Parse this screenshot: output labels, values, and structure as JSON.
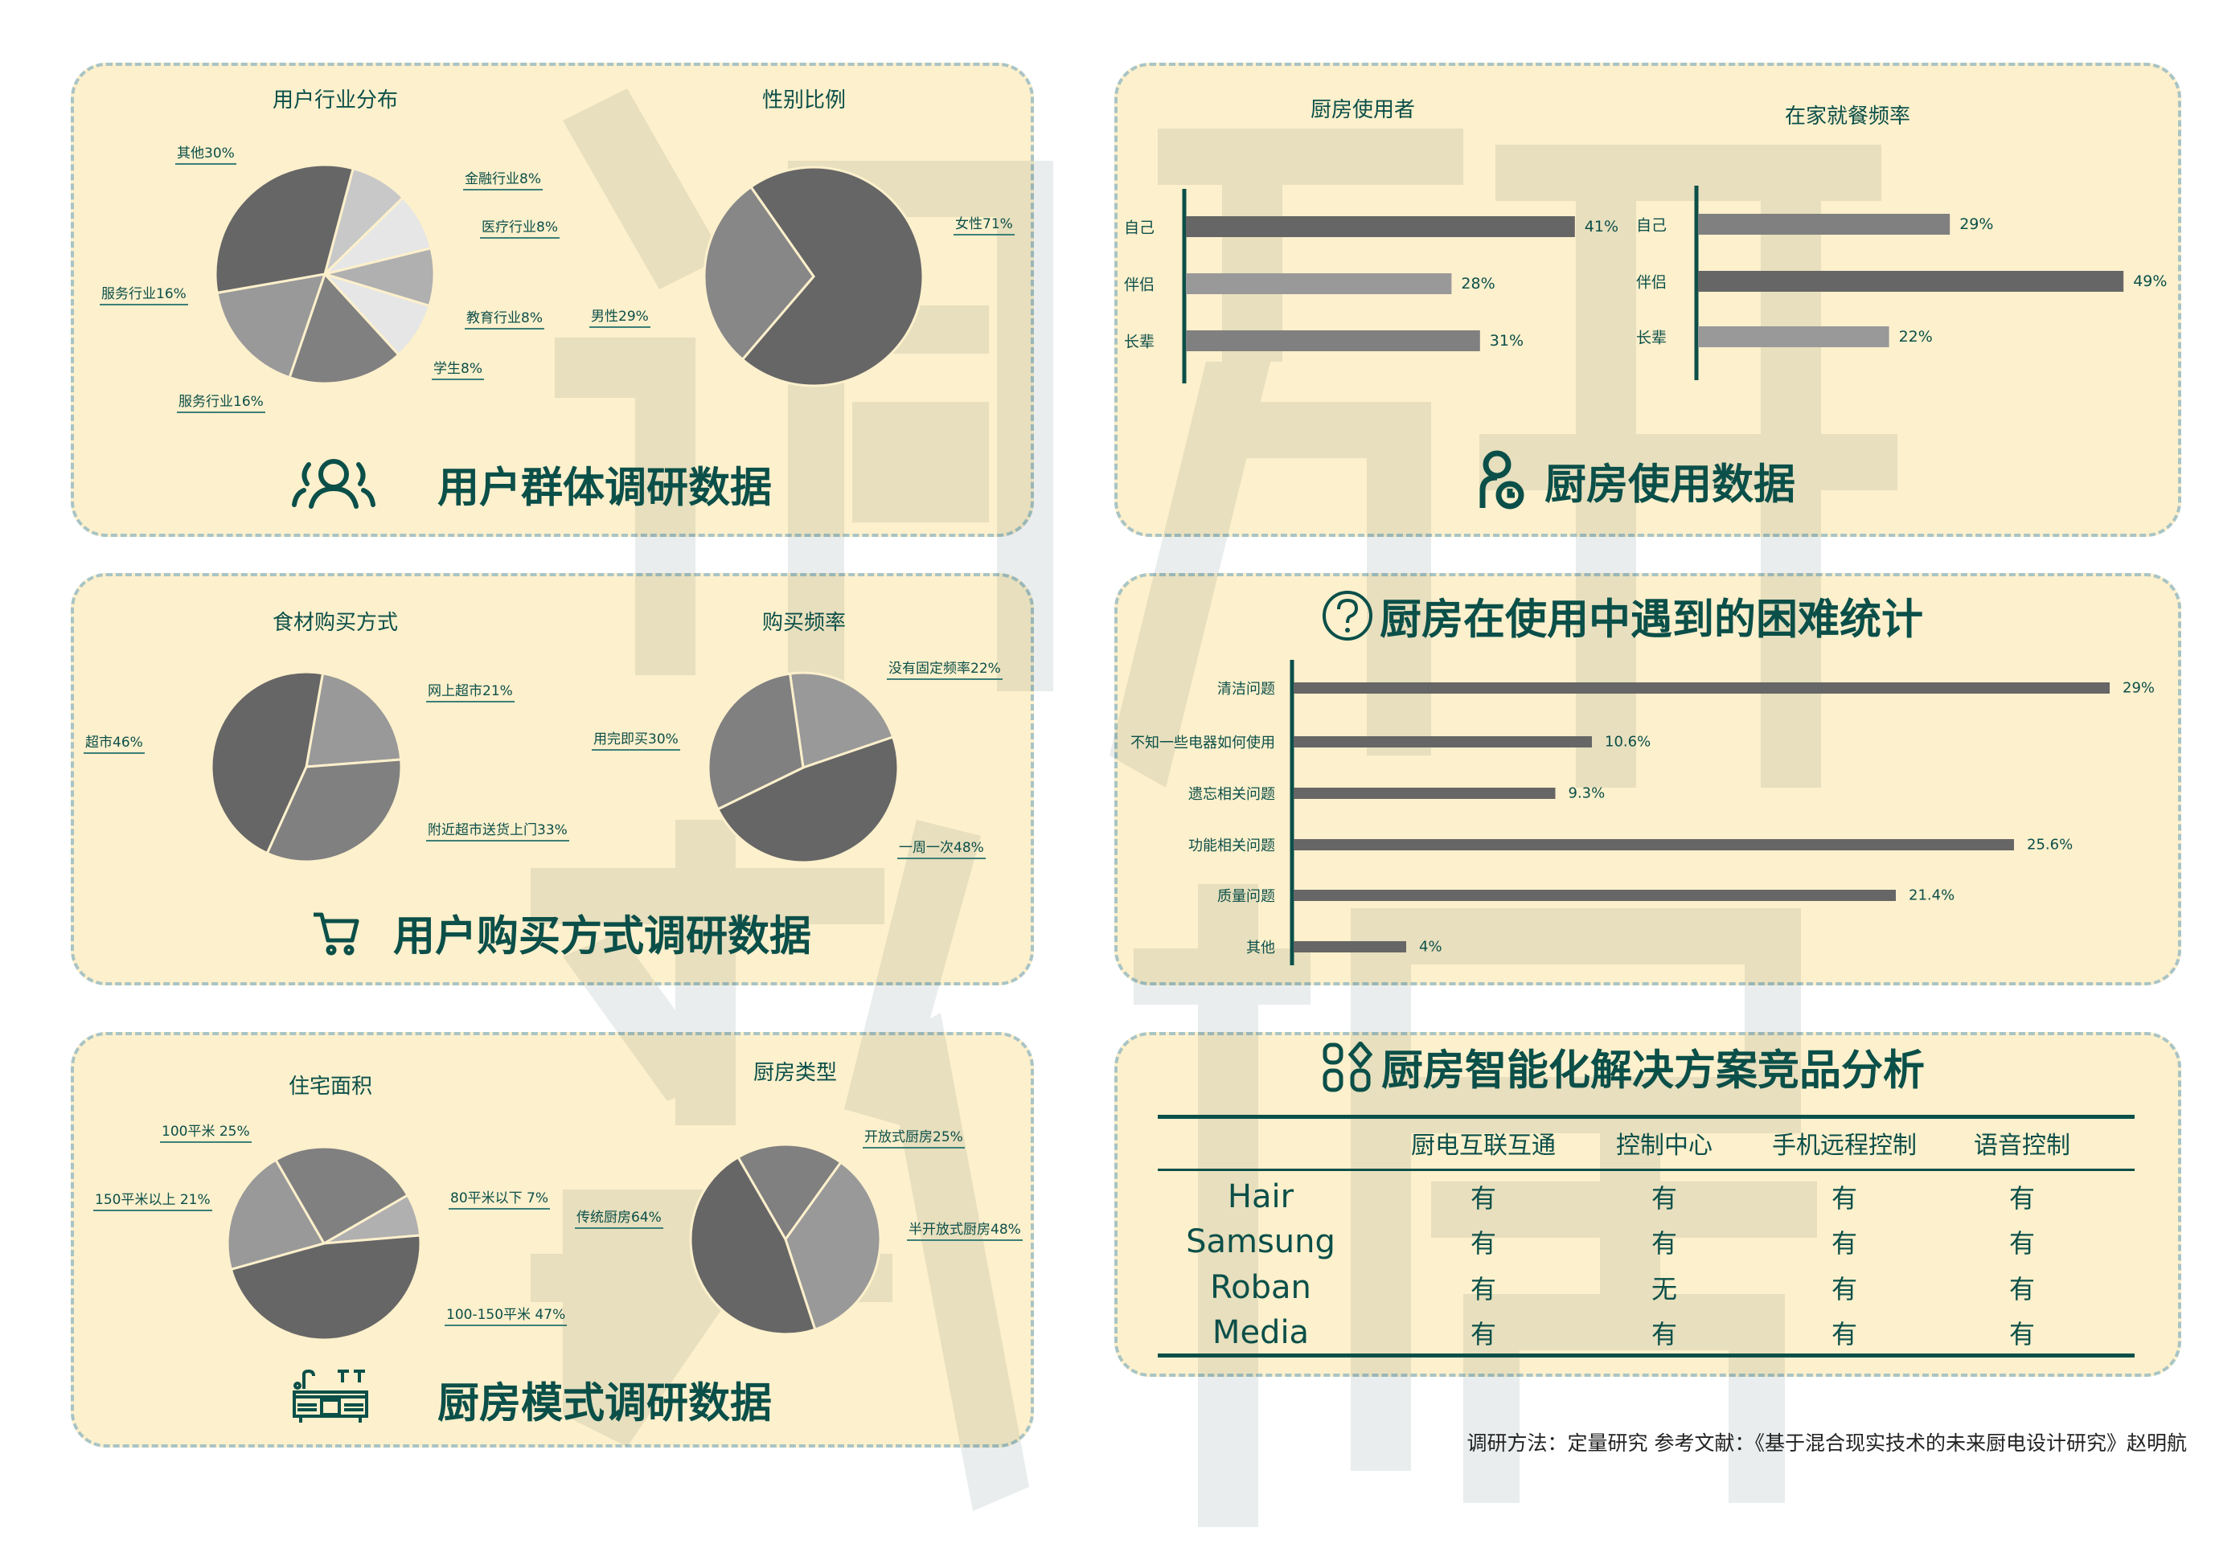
{
  "watermark": [
    "调",
    "研",
    "数",
    "据"
  ],
  "colors": {
    "accent": "#0b4f49",
    "panel": "#fdf0cc",
    "border": "#a9c4c4"
  },
  "user_group": {
    "section_title": "用户群体调研数据",
    "icon": "users-icon",
    "chart_data": [
      {
        "type": "pie",
        "title": "用户行业分布",
        "slices": [
          {
            "label": "金融行业8%",
            "value": 8,
            "color": "#c8c8c8"
          },
          {
            "label": "医疗行业8%",
            "value": 8,
            "color": "#e6e6e6"
          },
          {
            "label": "教育行业8%",
            "value": 8,
            "color": "#b0b0b0"
          },
          {
            "label": "学生8%",
            "value": 8,
            "color": "#e6e6e6"
          },
          {
            "label": "服务行业16%",
            "value": 16,
            "color": "#808080"
          },
          {
            "label": "服务行业16%",
            "value": 16,
            "color": "#999999"
          },
          {
            "label": "其他30%",
            "value": 30,
            "color": "#666666"
          }
        ]
      },
      {
        "type": "pie",
        "title": "性别比例",
        "slices": [
          {
            "label": "女性71%",
            "value": 71,
            "color": "#666666"
          },
          {
            "label": "男性29%",
            "value": 29,
            "color": "#878787"
          }
        ]
      }
    ]
  },
  "kitchen_usage": {
    "section_title": "厨房使用数据",
    "icon": "user-clock-icon",
    "chart_data": [
      {
        "type": "bar",
        "title": "厨房使用者",
        "categories": [
          "自己",
          "伴侣",
          "长辈"
        ],
        "values": [
          41,
          28,
          31
        ],
        "labels": [
          "41%",
          "28%",
          "31%"
        ],
        "colors": [
          "#666666",
          "#999999",
          "#808080"
        ]
      },
      {
        "type": "bar",
        "title": "在家就餐频率",
        "categories": [
          "自己",
          "伴侣",
          "长辈"
        ],
        "values": [
          29,
          49,
          22
        ],
        "labels": [
          "29%",
          "49%",
          "22%"
        ],
        "colors": [
          "#808080",
          "#666666",
          "#999999"
        ]
      }
    ]
  },
  "purchase": {
    "section_title": "用户购买方式调研数据",
    "icon": "cart-icon",
    "chart_data": [
      {
        "type": "pie",
        "title": "食材购买方式",
        "slices": [
          {
            "label": "网上超市21%",
            "value": 21,
            "color": "#999999"
          },
          {
            "label": "附近超市送货上门33%",
            "value": 33,
            "color": "#808080"
          },
          {
            "label": "超市46%",
            "value": 46,
            "color": "#666666"
          }
        ]
      },
      {
        "type": "pie",
        "title": "购买频率",
        "slices": [
          {
            "label": "没有固定频率22%",
            "value": 22,
            "color": "#999999"
          },
          {
            "label": "一周一次48%",
            "value": 48,
            "color": "#666666"
          },
          {
            "label": "用完即买30%",
            "value": 30,
            "color": "#808080"
          }
        ]
      }
    ]
  },
  "difficulty": {
    "section_title": "厨房在使用中遇到的困难统计",
    "icon": "question-circle-icon",
    "chart_data": {
      "type": "bar",
      "categories": [
        "清洁问题",
        "不知一些电器如何使用",
        "遗忘相关问题",
        "功能相关问题",
        "质量问题",
        "其他"
      ],
      "values": [
        29,
        10.6,
        9.3,
        25.6,
        21.4,
        4
      ],
      "labels": [
        "29%",
        "10.6%",
        "9.3%",
        "25.6%",
        "21.4%",
        "4%"
      ],
      "color": "#666666"
    }
  },
  "kitchen_mode": {
    "section_title": "厨房模式调研数据",
    "icon": "kitchen-icon",
    "chart_data": [
      {
        "type": "pie",
        "title": "住宅面积",
        "slices": [
          {
            "label": "80平米以下 7%",
            "value": 7,
            "color": "#b0b0b0"
          },
          {
            "label": "100-150平米 47%",
            "value": 47,
            "color": "#666666"
          },
          {
            "label": "150平米以上 21%",
            "value": 21,
            "color": "#999999"
          },
          {
            "label": "100平米 25%",
            "value": 25,
            "color": "#808080"
          }
        ]
      },
      {
        "type": "pie",
        "title": "厨房类型",
        "slices": [
          {
            "label": "开放式厨房25%",
            "value": 25,
            "color": "#808080"
          },
          {
            "label": "半开放式厨房48%",
            "value": 48,
            "color": "#999999"
          },
          {
            "label": "传统厨房64%",
            "value": 64,
            "color": "#666666"
          }
        ]
      }
    ]
  },
  "competitors": {
    "section_title": "厨房智能化解决方案竞品分析",
    "icon": "apps-icon",
    "columns": [
      "厨电互联互通",
      "控制中心",
      "手机远程控制",
      "语音控制"
    ],
    "rows": [
      {
        "brand": "Hair",
        "cells": [
          "有",
          "有",
          "有",
          "有"
        ]
      },
      {
        "brand": "Samsung",
        "cells": [
          "有",
          "有",
          "有",
          "有"
        ]
      },
      {
        "brand": "Roban",
        "cells": [
          "有",
          "无",
          "有",
          "有"
        ]
      },
      {
        "brand": "Media",
        "cells": [
          "有",
          "有",
          "有",
          "有"
        ]
      }
    ]
  },
  "footer": "调研方法：定量研究  参考文献：《基于混合现实技术的未来厨电设计研究》赵明航"
}
